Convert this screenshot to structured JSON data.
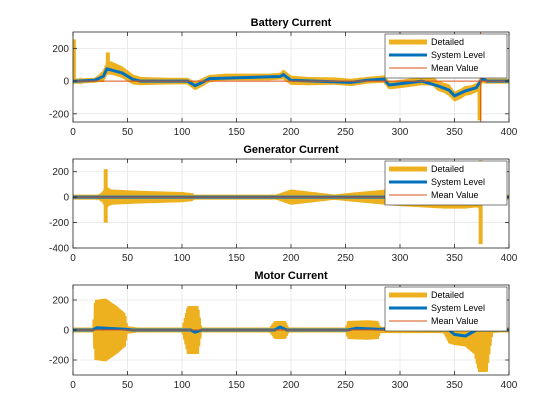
{
  "figure": {
    "background_color": "#ffffff"
  },
  "chart_data": [
    {
      "type": "line",
      "title": "Battery Current",
      "xlabel": "",
      "ylabel": "",
      "xlim": [
        0,
        400
      ],
      "ylim": [
        -250,
        300
      ],
      "xticks": [
        0,
        50,
        100,
        150,
        200,
        250,
        300,
        350,
        400
      ],
      "yticks": [
        -200,
        0,
        200
      ],
      "grid": true,
      "legend": {
        "position": "top-right",
        "entries": [
          "Detailed",
          "System Level",
          "Mean Value"
        ]
      },
      "series": [
        {
          "name": "Detailed",
          "color": "#EDB120",
          "style": "band",
          "x": [
            0,
            2,
            4,
            20,
            28,
            31,
            35,
            45,
            55,
            62,
            75,
            90,
            105,
            112,
            118,
            125,
            140,
            160,
            180,
            190,
            193,
            200,
            215,
            240,
            255,
            270,
            285,
            290,
            300,
            320,
            330,
            335,
            340,
            345,
            350,
            355,
            360,
            365,
            370,
            372,
            374,
            376,
            378,
            380,
            390,
            400
          ],
          "mean": [
            0,
            0,
            0,
            5,
            30,
            80,
            80,
            55,
            10,
            0,
            0,
            0,
            0,
            -30,
            -10,
            15,
            25,
            25,
            25,
            30,
            40,
            5,
            0,
            0,
            -8,
            5,
            12,
            -25,
            -18,
            0,
            0,
            -30,
            -40,
            -55,
            -95,
            -80,
            -60,
            -55,
            -40,
            -35,
            0,
            15,
            0,
            0,
            0,
            0
          ],
          "half_amp": [
            5,
            5,
            5,
            12,
            35,
            40,
            40,
            35,
            30,
            25,
            22,
            20,
            20,
            25,
            25,
            22,
            20,
            20,
            20,
            20,
            30,
            28,
            25,
            22,
            22,
            20,
            22,
            25,
            25,
            25,
            28,
            30,
            30,
            35,
            30,
            30,
            30,
            28,
            28,
            28,
            20,
            20,
            15,
            15,
            12,
            10
          ],
          "spikes": [
            {
              "x": 0.8,
              "from": 0,
              "to": 255
            },
            {
              "x": 32,
              "from": 40,
              "to": 175
            },
            {
              "x": 373,
              "from": -240,
              "to": -10
            }
          ]
        },
        {
          "name": "System Level",
          "color": "#0072BD",
          "style": "line",
          "width": 3,
          "x": [
            0,
            4,
            20,
            28,
            31,
            45,
            55,
            62,
            105,
            112,
            118,
            125,
            190,
            193,
            200,
            255,
            270,
            285,
            290,
            320,
            335,
            345,
            350,
            360,
            370,
            374,
            376,
            380,
            400
          ],
          "y": [
            0,
            0,
            5,
            30,
            75,
            50,
            10,
            0,
            0,
            -28,
            -10,
            15,
            28,
            40,
            5,
            -8,
            5,
            12,
            -24,
            0,
            -30,
            -55,
            -90,
            -60,
            -40,
            0,
            12,
            0,
            0
          ]
        },
        {
          "name": "Mean Value",
          "color": "#D95319",
          "style": "line",
          "width": 1,
          "x": [
            0,
            400
          ],
          "y": [
            0,
            0
          ],
          "vertical": {
            "x": 374,
            "from": -250,
            "to": 300
          }
        }
      ]
    },
    {
      "type": "line",
      "title": "Generator Current",
      "xlabel": "",
      "ylabel": "",
      "xlim": [
        0,
        400
      ],
      "ylim": [
        -400,
        300
      ],
      "xticks": [
        0,
        50,
        100,
        150,
        200,
        250,
        300,
        350,
        400
      ],
      "yticks": [
        -400,
        -200,
        0,
        200
      ],
      "grid": true,
      "legend": {
        "position": "top-right",
        "entries": [
          "Detailed",
          "System Level",
          "Mean Value"
        ]
      },
      "series": [
        {
          "name": "Detailed",
          "color": "#EDB120",
          "style": "band",
          "x": [
            0,
            20,
            27,
            30,
            33,
            35,
            60,
            100,
            110,
            112,
            180,
            190,
            200,
            220,
            240,
            250,
            275,
            300,
            320,
            340,
            360,
            370,
            373,
            376,
            380,
            390,
            400
          ],
          "mean": [
            0,
            0,
            0,
            0,
            0,
            0,
            0,
            0,
            0,
            0,
            0,
            0,
            0,
            0,
            0,
            0,
            0,
            0,
            0,
            0,
            0,
            0,
            0,
            0,
            0,
            0,
            0
          ],
          "half_amp": [
            0,
            0,
            40,
            90,
            70,
            60,
            50,
            40,
            30,
            0,
            0,
            30,
            60,
            40,
            20,
            30,
            50,
            70,
            80,
            90,
            90,
            80,
            90,
            60,
            30,
            20,
            15
          ],
          "spikes": [
            {
              "x": 30,
              "from": -200,
              "to": 220
            },
            {
              "x": 374,
              "from": -370,
              "to": 290
            }
          ]
        },
        {
          "name": "System Level",
          "color": "#0072BD",
          "style": "line",
          "width": 3,
          "x": [
            0,
            400
          ],
          "y": [
            0,
            0
          ]
        },
        {
          "name": "Mean Value",
          "color": "#D95319",
          "style": "line",
          "width": 1,
          "x": [
            0,
            400
          ],
          "y": [
            0,
            0
          ]
        }
      ]
    },
    {
      "type": "line",
      "title": "Motor Current",
      "xlabel": "",
      "ylabel": "",
      "xlim": [
        0,
        400
      ],
      "ylim": [
        -300,
        300
      ],
      "xticks": [
        0,
        50,
        100,
        150,
        200,
        250,
        300,
        350,
        400
      ],
      "yticks": [
        -200,
        0,
        200
      ],
      "grid": true,
      "legend": {
        "position": "top-right",
        "entries": [
          "Detailed",
          "System Level",
          "Mean Value"
        ]
      },
      "series": [
        {
          "name": "Detailed",
          "color": "#EDB120",
          "style": "band",
          "x": [
            0,
            18,
            20,
            30,
            40,
            48,
            50,
            60,
            100,
            105,
            115,
            118,
            180,
            185,
            195,
            198,
            250,
            252,
            270,
            280,
            282,
            340,
            345,
            350,
            360,
            368,
            372,
            380,
            385,
            400
          ],
          "mean": [
            0,
            0,
            0,
            0,
            0,
            0,
            0,
            0,
            0,
            0,
            0,
            0,
            0,
            0,
            0,
            0,
            0,
            0,
            0,
            0,
            0,
            0,
            0,
            0,
            0,
            0,
            0,
            0,
            0,
            0
          ],
          "half_amp": [
            0,
            0,
            200,
            210,
            160,
            110,
            25,
            15,
            12,
            160,
            160,
            15,
            12,
            60,
            60,
            15,
            10,
            60,
            65,
            60,
            20,
            20,
            90,
            100,
            110,
            160,
            280,
            280,
            20,
            10
          ]
        },
        {
          "name": "System Level",
          "color": "#0072BD",
          "style": "line",
          "width": 3,
          "x": [
            0,
            18,
            22,
            35,
            48,
            55,
            108,
            112,
            118,
            185,
            190,
            196,
            252,
            260,
            280,
            345,
            350,
            360,
            365,
            370,
            375,
            385,
            400
          ],
          "y": [
            0,
            0,
            15,
            10,
            5,
            0,
            0,
            -15,
            0,
            0,
            20,
            0,
            0,
            12,
            5,
            0,
            -30,
            -40,
            -20,
            0,
            0,
            0,
            0
          ]
        },
        {
          "name": "Mean Value",
          "color": "#D95319",
          "style": "line",
          "width": 1,
          "x": [
            0,
            400
          ],
          "y": [
            0,
            0
          ]
        }
      ]
    }
  ]
}
